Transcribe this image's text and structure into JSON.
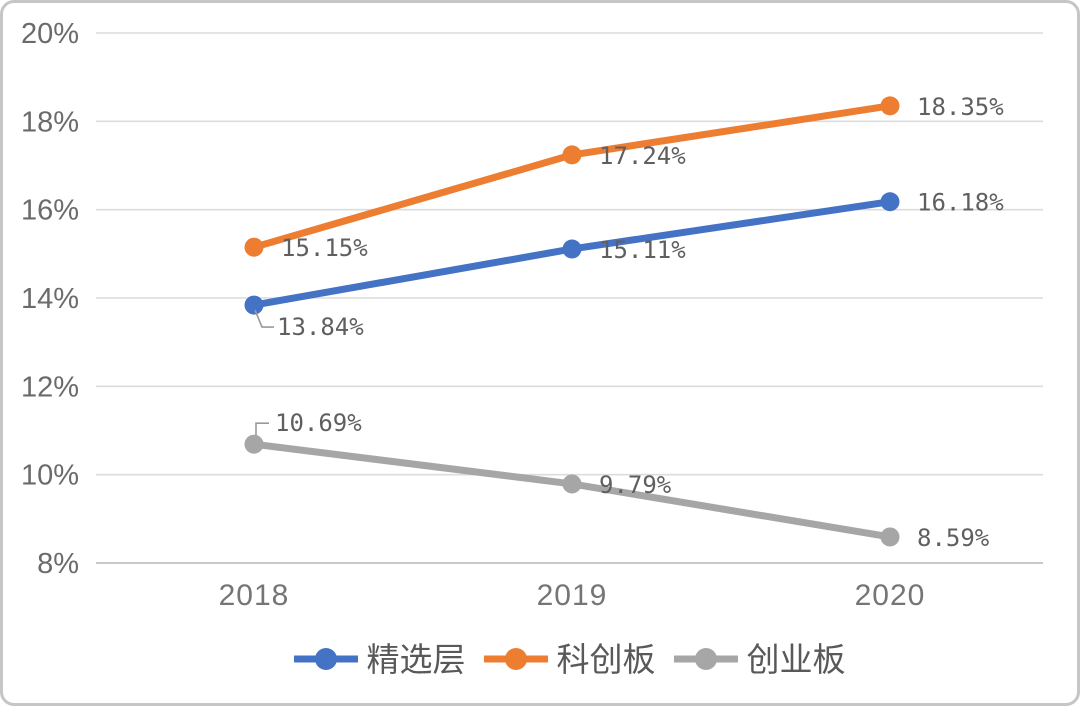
{
  "chart_data": {
    "type": "line",
    "title": "",
    "xlabel": "",
    "ylabel": "",
    "x": [
      "2018",
      "2019",
      "2020"
    ],
    "series": [
      {
        "name": "精选层",
        "color": "#4472C4",
        "values": [
          13.84,
          15.11,
          16.18
        ],
        "labels": [
          "13.84%",
          "15.11%",
          "16.18%"
        ],
        "label_positions": [
          "below-leader",
          "right",
          "right"
        ]
      },
      {
        "name": "科创板",
        "color": "#ED7D31",
        "values": [
          15.15,
          17.24,
          18.35
        ],
        "labels": [
          "15.15%",
          "17.24%",
          "18.35%"
        ],
        "label_positions": [
          "right",
          "right",
          "right"
        ]
      },
      {
        "name": "创业板",
        "color": "#A6A6A6",
        "values": [
          10.69,
          9.79,
          8.59
        ],
        "labels": [
          "10.69%",
          "9.79%",
          "8.59%"
        ],
        "label_positions": [
          "above-leader",
          "right",
          "right"
        ]
      }
    ],
    "ylim": [
      8,
      20
    ],
    "ytick_step": 2,
    "yticks": [
      "8%",
      "10%",
      "12%",
      "14%",
      "16%",
      "18%",
      "20%"
    ],
    "grid": true,
    "legend_position": "bottom",
    "marker": "circle"
  },
  "colors": {
    "gridline": "#dcdcdc",
    "axis_line": "#c9c9c9",
    "tick_text": "#6b6b6b",
    "data_label_text": "#5f5f5f",
    "legend_text": "#595959",
    "leader_line": "#9a9a9a",
    "card_border": "#c6c6c6",
    "background": "#ffffff"
  }
}
